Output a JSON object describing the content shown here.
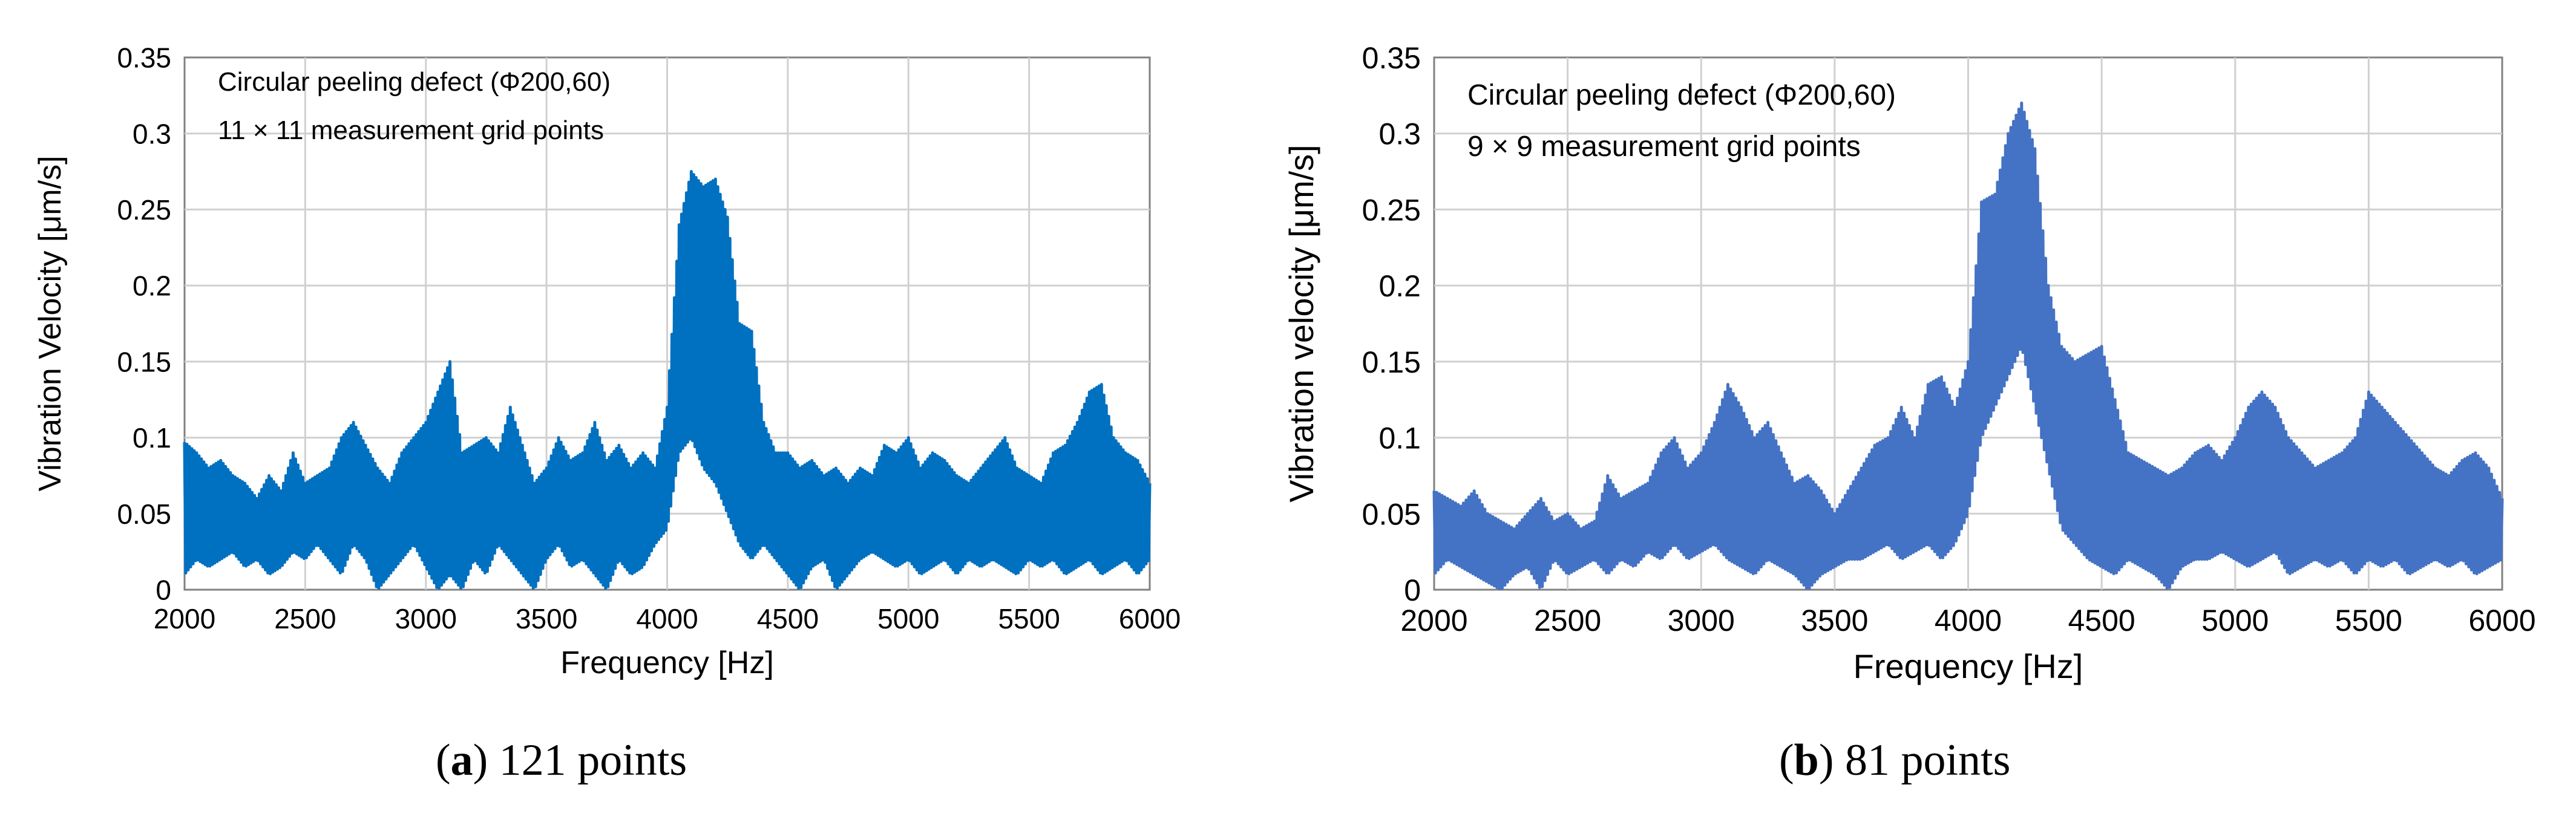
{
  "colors": {
    "series_a": "#0070C0",
    "series_b": "#4472C4",
    "grid": "#D0D0D0",
    "axis": "#808080"
  },
  "panels": [
    {
      "caption": {
        "open": "(",
        "letter": "a",
        "rest": ") 121 points"
      },
      "chart_data": {
        "type": "line",
        "title": "",
        "xlabel": "Frequency [Hz]",
        "ylabel": "Vibration Velocity [μm/s]",
        "xlim": [
          2000,
          6000
        ],
        "ylim": [
          0,
          0.35
        ],
        "xticks": [
          2000,
          2500,
          3000,
          3500,
          4000,
          4500,
          5000,
          5500,
          6000
        ],
        "yticks": [
          0,
          0.05,
          0.1,
          0.15,
          0.2,
          0.25,
          0.3,
          0.35
        ],
        "ytick_labels": [
          "0",
          "0.05",
          "0.1",
          "0.15",
          "0.2",
          "0.25",
          "0.3",
          "0.35"
        ],
        "grid": true,
        "annotations": [
          "Circular peeling defect (Φ200,60)",
          "11 × 11 measurement grid points"
        ],
        "series": [
          {
            "x": [
              2000,
              2050,
              2100,
              2150,
              2200,
              2250,
              2300,
              2350,
              2400,
              2450,
              2500,
              2550,
              2600,
              2650,
              2700,
              2750,
              2800,
              2850,
              2900,
              2950,
              3000,
              3050,
              3100,
              3150,
              3200,
              3250,
              3300,
              3350,
              3400,
              3450,
              3500,
              3550,
              3600,
              3650,
              3700,
              3750,
              3800,
              3850,
              3900,
              3950,
              4000,
              4050,
              4100,
              4150,
              4200,
              4250,
              4300,
              4350,
              4400,
              4450,
              4500,
              4550,
              4600,
              4650,
              4700,
              4750,
              4800,
              4850,
              4900,
              4950,
              5000,
              5050,
              5100,
              5150,
              5200,
              5250,
              5300,
              5350,
              5400,
              5450,
              5500,
              5550,
              5600,
              5650,
              5700,
              5750,
              5800,
              5850,
              5900,
              5950,
              6000
            ],
            "upper": [
              0.097,
              0.09,
              0.08,
              0.085,
              0.075,
              0.07,
              0.06,
              0.075,
              0.065,
              0.09,
              0.07,
              0.075,
              0.08,
              0.1,
              0.11,
              0.095,
              0.08,
              0.07,
              0.09,
              0.1,
              0.11,
              0.13,
              0.15,
              0.09,
              0.095,
              0.1,
              0.09,
              0.12,
              0.095,
              0.07,
              0.08,
              0.1,
              0.085,
              0.09,
              0.11,
              0.085,
              0.095,
              0.08,
              0.09,
              0.08,
              0.12,
              0.24,
              0.275,
              0.265,
              0.27,
              0.245,
              0.175,
              0.17,
              0.11,
              0.09,
              0.09,
              0.08,
              0.085,
              0.075,
              0.08,
              0.07,
              0.08,
              0.075,
              0.095,
              0.09,
              0.1,
              0.08,
              0.09,
              0.085,
              0.075,
              0.07,
              0.08,
              0.09,
              0.1,
              0.08,
              0.075,
              0.07,
              0.09,
              0.095,
              0.11,
              0.13,
              0.135,
              0.1,
              0.09,
              0.085,
              0.07
            ],
            "lower": [
              0.01,
              0.02,
              0.015,
              0.02,
              0.025,
              0.015,
              0.02,
              0.01,
              0.015,
              0.025,
              0.02,
              0.03,
              0.02,
              0.01,
              0.03,
              0.02,
              0.0,
              0.01,
              0.02,
              0.03,
              0.015,
              0.0,
              0.01,
              0.0,
              0.02,
              0.01,
              0.03,
              0.02,
              0.01,
              0.0,
              0.02,
              0.03,
              0.015,
              0.02,
              0.01,
              0.0,
              0.02,
              0.01,
              0.015,
              0.03,
              0.04,
              0.09,
              0.1,
              0.08,
              0.07,
              0.05,
              0.03,
              0.02,
              0.03,
              0.02,
              0.01,
              0.0,
              0.015,
              0.02,
              0.0,
              0.01,
              0.02,
              0.025,
              0.02,
              0.015,
              0.02,
              0.01,
              0.015,
              0.02,
              0.01,
              0.02,
              0.015,
              0.02,
              0.015,
              0.01,
              0.02,
              0.015,
              0.02,
              0.01,
              0.015,
              0.02,
              0.01,
              0.015,
              0.02,
              0.01,
              0.02
            ]
          }
        ]
      }
    },
    {
      "caption": {
        "open": "(",
        "letter": "b",
        "rest": ") 81 points"
      },
      "chart_data": {
        "type": "line",
        "title": "",
        "xlabel": "Frequency [Hz]",
        "ylabel": "Vibration velocity [μm/s]",
        "xlim": [
          2000,
          6000
        ],
        "ylim": [
          0,
          0.35
        ],
        "xticks": [
          2000,
          2500,
          3000,
          3500,
          4000,
          4500,
          5000,
          5500,
          6000
        ],
        "yticks": [
          0,
          0.05,
          0.1,
          0.15,
          0.2,
          0.25,
          0.3,
          0.35
        ],
        "ytick_labels": [
          "0",
          "0.05",
          "0.1",
          "0.15",
          "0.2",
          "0.25",
          "0.3",
          "0.35"
        ],
        "grid": true,
        "annotations": [
          "Circular peeling defect (Φ200,60)",
          "9 × 9 measurement grid points"
        ],
        "series": [
          {
            "x": [
              2000,
              2050,
              2100,
              2150,
              2200,
              2250,
              2300,
              2350,
              2400,
              2450,
              2500,
              2550,
              2600,
              2650,
              2700,
              2750,
              2800,
              2850,
              2900,
              2950,
              3000,
              3050,
              3100,
              3150,
              3200,
              3250,
              3300,
              3350,
              3400,
              3450,
              3500,
              3550,
              3600,
              3650,
              3700,
              3750,
              3800,
              3850,
              3900,
              3950,
              4000,
              4050,
              4100,
              4150,
              4200,
              4250,
              4300,
              4350,
              4400,
              4450,
              4500,
              4550,
              4600,
              4650,
              4700,
              4750,
              4800,
              4850,
              4900,
              4950,
              5000,
              5050,
              5100,
              5150,
              5200,
              5250,
              5300,
              5350,
              5400,
              5450,
              5500,
              5550,
              5600,
              5650,
              5700,
              5750,
              5800,
              5850,
              5900,
              5950,
              6000
            ],
            "upper": [
              0.065,
              0.06,
              0.055,
              0.065,
              0.05,
              0.045,
              0.04,
              0.05,
              0.06,
              0.045,
              0.05,
              0.04,
              0.045,
              0.075,
              0.06,
              0.065,
              0.07,
              0.09,
              0.1,
              0.08,
              0.09,
              0.11,
              0.135,
              0.12,
              0.1,
              0.11,
              0.09,
              0.07,
              0.075,
              0.065,
              0.05,
              0.065,
              0.08,
              0.095,
              0.1,
              0.12,
              0.1,
              0.135,
              0.14,
              0.12,
              0.15,
              0.255,
              0.26,
              0.3,
              0.32,
              0.29,
              0.2,
              0.16,
              0.15,
              0.155,
              0.16,
              0.125,
              0.09,
              0.085,
              0.08,
              0.075,
              0.08,
              0.09,
              0.095,
              0.085,
              0.1,
              0.12,
              0.13,
              0.12,
              0.1,
              0.09,
              0.08,
              0.085,
              0.09,
              0.1,
              0.13,
              0.12,
              0.11,
              0.1,
              0.09,
              0.08,
              0.075,
              0.085,
              0.09,
              0.08,
              0.06
            ],
            "lower": [
              0.01,
              0.02,
              0.015,
              0.01,
              0.005,
              0.0,
              0.01,
              0.015,
              0.0,
              0.02,
              0.01,
              0.015,
              0.02,
              0.01,
              0.02,
              0.015,
              0.025,
              0.02,
              0.03,
              0.02,
              0.025,
              0.03,
              0.02,
              0.015,
              0.01,
              0.02,
              0.015,
              0.01,
              0.0,
              0.01,
              0.015,
              0.02,
              0.02,
              0.025,
              0.03,
              0.02,
              0.025,
              0.03,
              0.02,
              0.03,
              0.05,
              0.1,
              0.12,
              0.14,
              0.16,
              0.12,
              0.08,
              0.04,
              0.03,
              0.02,
              0.015,
              0.01,
              0.02,
              0.015,
              0.01,
              0.0,
              0.015,
              0.02,
              0.02,
              0.025,
              0.02,
              0.015,
              0.02,
              0.025,
              0.01,
              0.015,
              0.02,
              0.015,
              0.02,
              0.01,
              0.02,
              0.015,
              0.02,
              0.01,
              0.015,
              0.02,
              0.015,
              0.02,
              0.01,
              0.015,
              0.02
            ]
          }
        ]
      }
    }
  ]
}
